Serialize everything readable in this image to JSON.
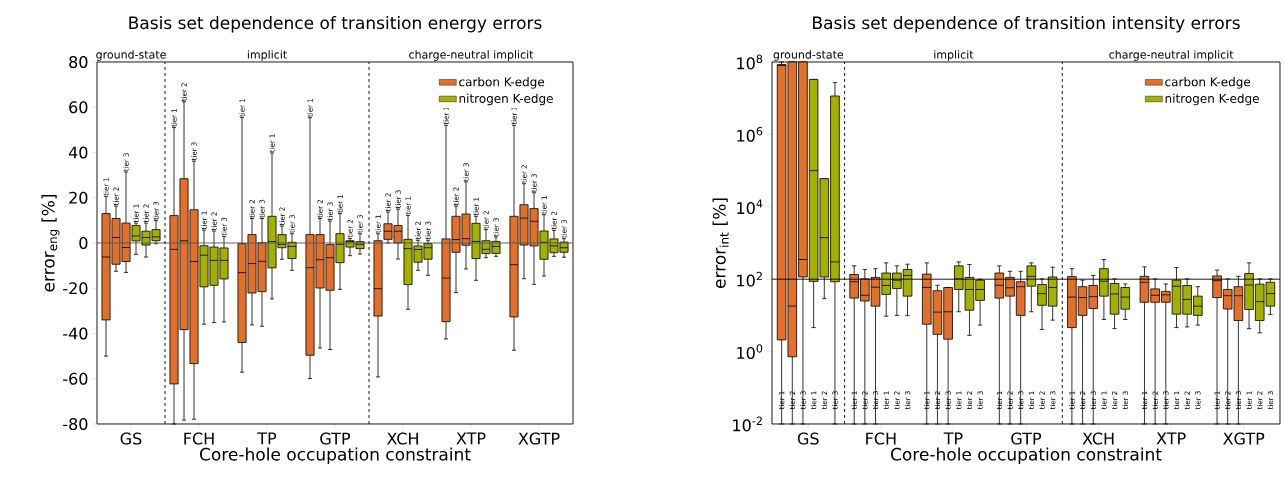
{
  "chart_data": [
    {
      "type": "box",
      "title": "Basis set dependence of transition energy errors",
      "xlabel": "Core-hole occupation constraint",
      "ylabel": "error$_{eng}$ [%]",
      "categories": [
        "GS",
        "FCH",
        "TP",
        "GTP",
        "XCH",
        "XTP",
        "XGTP"
      ],
      "ylim": [
        -80,
        80
      ],
      "yticks": [
        -80,
        -60,
        -40,
        -20,
        0,
        20,
        40,
        60,
        80
      ],
      "legend": "top right",
      "series": [
        {
          "name": "carbon K-edge",
          "color": "#e3702a",
          "boxes": [
            {
              "low": -50,
              "q1": -34,
              "median": -6.2,
              "q3": 13,
              "high": 20.6
            },
            {
              "low": -80,
              "q1": -62.3,
              "median": -2.8,
              "q3": 12.1,
              "high": 51
            },
            {
              "low": -57.1,
              "q1": -44,
              "median": -13.1,
              "q3": -0.3,
              "high": 55.4
            },
            {
              "low": -59.9,
              "q1": -49.6,
              "median": -10.9,
              "q3": 3.7,
              "high": 55.4
            },
            {
              "low": -59.2,
              "q1": -32.3,
              "median": -20.2,
              "q3": 1,
              "high": 4.1
            },
            {
              "low": -42.4,
              "q1": -34.8,
              "median": -15.5,
              "q3": 1.8,
              "high": 52
            },
            {
              "low": -47.4,
              "q1": -32.7,
              "median": -9.6,
              "q3": 11.8,
              "high": 52
            }
          ]
        },
        {
          "color": "#e3702a",
          "boxes": [
            {
              "low": -12.5,
              "q1": -9.4,
              "median": 2.4,
              "q3": 10.8,
              "high": 16.3
            },
            {
              "low": -78.3,
              "q1": -38.3,
              "median": 1,
              "q3": 28.4,
              "high": 62.4
            },
            {
              "low": -36.2,
              "q1": -22.1,
              "median": -9.1,
              "q3": 3.7,
              "high": 10.8
            },
            {
              "low": -46.4,
              "q1": -19.9,
              "median": -7.4,
              "q3": 3.7,
              "high": 10.8
            },
            {
              "low": 0,
              "q1": 1.6,
              "median": 5.2,
              "q3": 8.5,
              "high": 13.7
            },
            {
              "low": -21.9,
              "q1": -4.1,
              "median": 1.5,
              "q3": 11.8,
              "high": 16.3
            },
            {
              "low": -15.8,
              "q1": -0.9,
              "median": 11,
              "q3": 16.9,
              "high": 26.2
            }
          ]
        },
        {
          "color": "#e3702a",
          "boxes": [
            {
              "low": -13,
              "q1": -8.2,
              "median": -2,
              "q3": 8.8,
              "high": 31.4
            },
            {
              "low": -77.9,
              "q1": -53.3,
              "median": -8.2,
              "q3": 14.7,
              "high": 36.2
            },
            {
              "low": -36.8,
              "q1": -21.5,
              "median": -8.1,
              "q3": 0.1,
              "high": 10.8
            },
            {
              "low": -47.1,
              "q1": -20.9,
              "median": -6.5,
              "q3": -0.7,
              "high": 9.7
            },
            {
              "low": -7.1,
              "q1": 0,
              "median": 5.2,
              "q3": 7.7,
              "high": 15
            },
            {
              "low": -11.5,
              "q1": -1,
              "median": 1.9,
              "q3": 12.8,
              "high": 27
            },
            {
              "low": -18.3,
              "q1": -1.3,
              "median": 9.6,
              "q3": 15.2,
              "high": 22.2
            }
          ]
        },
        {
          "name": "nitrogen K-edge",
          "color": "#a4b000",
          "boxes": [
            {
              "low": -5,
              "q1": 0.9,
              "median": 3.1,
              "q3": 7.7,
              "high": 8.8
            },
            {
              "low": -35.9,
              "q1": -19.4,
              "median": -5.4,
              "q3": -1.2,
              "high": 5.7
            },
            {
              "low": -24.7,
              "q1": -11,
              "median": 0.6,
              "q3": 11.8,
              "high": 39.8
            },
            {
              "low": -20.5,
              "q1": -8.7,
              "median": -0.6,
              "q3": 4.1,
              "high": 13
            },
            {
              "low": -29.3,
              "q1": -18.4,
              "median": -2.5,
              "q3": 1.6,
              "high": 12.2
            },
            {
              "low": -16.5,
              "q1": -6.9,
              "median": 0.7,
              "q3": 8.7,
              "high": 11.8
            },
            {
              "low": -14.6,
              "q1": -7.2,
              "median": 0.3,
              "q3": 5.3,
              "high": 12.5
            }
          ]
        },
        {
          "color": "#a4b000",
          "boxes": [
            {
              "low": -6.2,
              "q1": -0.9,
              "median": 2.4,
              "q3": 5.2,
              "high": 8.8
            },
            {
              "low": -35.2,
              "q1": -18.7,
              "median": -7.7,
              "q3": -1.8,
              "high": 5.3
            },
            {
              "low": -7.2,
              "q1": -2.1,
              "median": -0.6,
              "q3": 3.7,
              "high": 7.5
            },
            {
              "low": -5.6,
              "q1": -1.8,
              "median": 0.6,
              "q3": 1,
              "high": 2
            },
            {
              "low": -12.1,
              "q1": -8.5,
              "median": -2.9,
              "q3": -1.3,
              "high": 1.2
            },
            {
              "low": -6.5,
              "q1": -4.7,
              "median": -2.8,
              "q3": 1,
              "high": 5.9
            },
            {
              "low": -5.9,
              "q1": -4.3,
              "median": -1.3,
              "q3": 1.8,
              "high": 5.6
            }
          ]
        },
        {
          "color": "#a4b000",
          "boxes": [
            {
              "low": -0.3,
              "q1": 1,
              "median": 2.7,
              "q3": 5.9,
              "high": 9.9
            },
            {
              "low": -34.9,
              "q1": -15.9,
              "median": -7.7,
              "q3": -2.2,
              "high": 2.9
            },
            {
              "low": -12.1,
              "q1": -6.9,
              "median": -1.5,
              "q3": 0.3,
              "high": 4.1
            },
            {
              "low": -4.9,
              "q1": -2.5,
              "median": -0.6,
              "q3": 0.6,
              "high": 4.1
            },
            {
              "low": -14.3,
              "q1": -7.2,
              "median": -2.1,
              "q3": -0.3,
              "high": 1.2
            },
            {
              "low": -5.9,
              "q1": -4.6,
              "median": -1.5,
              "q3": 0.7,
              "high": 2.7
            },
            {
              "low": -6.3,
              "q1": -4.1,
              "median": -2.1,
              "q3": 0.4,
              "high": 1.9
            }
          ]
        }
      ],
      "ref_lines": [
        {
          "axis": "y",
          "value": 0,
          "color": "#555555",
          "line_style": "solid"
        }
      ],
      "annotations": [
        "ground-state",
        "implicit",
        "charge-neutral implicit",
        "tier 1",
        "tier 2",
        "tier 3",
        "tier 1",
        "tier 2",
        "tier 3",
        "tier 1",
        "tier 2",
        "tier 3",
        "tier 1",
        "tier 2",
        "tier 3",
        "tier 1",
        "tier 2",
        "tier 3",
        "tier 1",
        "tier 2",
        "tier 3",
        "tier 1",
        "tier 2",
        "tier 3",
        "tier 1",
        "tier 2",
        "tier 3",
        "tier 1",
        "tier 2",
        "tier 3",
        "tier 1",
        "tier 2",
        "tier 3",
        "tier 1",
        "tier 2",
        "tier 3",
        "tier 1",
        "tier 2",
        "tier 3",
        "tier 1",
        "tier 2",
        "tier 3",
        "tier 1",
        "tier 2",
        "tier 3"
      ]
    },
    {
      "type": "box",
      "title": "Basis set dependence of transition intensity errors",
      "xlabel": "Core-hole occupation constraint",
      "ylabel": "error$_{int}$ [%]",
      "categories": [
        "GS",
        "FCH",
        "TP",
        "GTP",
        "XCH",
        "XTP",
        "XGTP"
      ],
      "log": "y",
      "ylim": [
        0.01,
        100000000
      ],
      "yticks": [
        {
          "value": 0.01,
          "label": "10$^{-2}$"
        },
        {
          "value": 1,
          "label": "10$^{0}$"
        },
        {
          "value": 100,
          "label": "10$^{2}$"
        },
        {
          "value": 10000,
          "label": "10$^{4}$"
        },
        {
          "value": 1000000,
          "label": "10$^{6}$"
        },
        {
          "value": 100000000,
          "label": "10$^{8}$"
        }
      ],
      "legend": "top right",
      "series": [
        {
          "name": "carbon K-edge",
          "color": "#e3702a",
          "boxes": [
            {
              "low": 0.01,
              "q1": 2.1,
              "median": 80000000,
              "q3": 85000000,
              "high": 100000000
            },
            {
              "low": 0.01,
              "q1": 30,
              "median": 85,
              "q3": 135,
              "high": 234
            },
            {
              "low": 0.01,
              "q1": 5.7,
              "median": 59,
              "q3": 138,
              "high": 282
            },
            {
              "low": 0.01,
              "q1": 30,
              "median": 68,
              "q3": 148,
              "high": 234
            },
            {
              "low": 0.01,
              "q1": 4.6,
              "median": 32,
              "q3": 118,
              "high": 195
            },
            {
              "low": 0.01,
              "q1": 23,
              "median": 82,
              "q3": 120,
              "high": 219
            },
            {
              "low": 0.01,
              "q1": 31,
              "median": 91,
              "q3": 123,
              "high": 178
            }
          ]
        },
        {
          "color": "#e3702a",
          "boxes": [
            {
              "low": 0.01,
              "q1": 0.72,
              "median": 18,
              "q3": 100000000,
              "high": 100000000
            },
            {
              "low": 0.01,
              "q1": 25,
              "median": 36,
              "q3": 102,
              "high": 186
            },
            {
              "low": 0.01,
              "q1": 3,
              "median": 12.3,
              "q3": 48,
              "high": 68
            },
            {
              "low": 0.01,
              "q1": 34,
              "median": 58,
              "q3": 112,
              "high": 165
            },
            {
              "low": 0.01,
              "q1": 10,
              "median": 31,
              "q3": 62,
              "high": 94
            },
            {
              "low": 0.01,
              "q1": 23,
              "median": 36,
              "q3": 54,
              "high": 102
            },
            {
              "low": 0.01,
              "q1": 15,
              "median": 35,
              "q3": 52,
              "high": 102
            }
          ]
        },
        {
          "color": "#e3702a",
          "boxes": [
            {
              "low": 0.01,
              "q1": 115,
              "median": 350,
              "q3": 100000000,
              "high": 100000000
            },
            {
              "low": 0.01,
              "q1": 18,
              "median": 60,
              "q3": 112,
              "high": 195
            },
            {
              "low": 0.01,
              "q1": 2.2,
              "median": 12.6,
              "q3": 59,
              "high": 59
            },
            {
              "low": 0.01,
              "q1": 10,
              "median": 62,
              "q3": 85,
              "high": 165
            },
            {
              "low": 0.01,
              "q1": 15.5,
              "median": 33,
              "q3": 67,
              "high": 126
            },
            {
              "low": 0.01,
              "q1": 23,
              "median": 37,
              "q3": 46,
              "high": 74
            },
            {
              "low": 0.01,
              "q1": 7.2,
              "median": 35,
              "q3": 62,
              "high": 120
            }
          ]
        },
        {
          "name": "nitrogen K-edge",
          "color": "#a4b000",
          "boxes": [
            {
              "low": 4.6,
              "q1": 87,
              "median": 100000,
              "q3": 33000000,
              "high": 33000000
            },
            {
              "low": 9.5,
              "q1": 38,
              "median": 67,
              "q3": 148,
              "high": 282
            },
            {
              "low": 12.6,
              "q1": 52,
              "median": 102,
              "q3": 234,
              "high": 300
            },
            {
              "low": 12.6,
              "q1": 64,
              "median": 120,
              "q3": 234,
              "high": 282
            },
            {
              "low": 7.7,
              "q1": 34,
              "median": 88,
              "q3": 195,
              "high": 350
            },
            {
              "low": 4.6,
              "q1": 10.8,
              "median": 64,
              "q3": 94,
              "high": 210
            },
            {
              "low": 4.3,
              "q1": 14.5,
              "median": 69,
              "q3": 144,
              "high": 282
            }
          ]
        },
        {
          "color": "#a4b000",
          "boxes": [
            {
              "low": 29,
              "q1": 115,
              "median": 1400,
              "q3": 60000,
              "high": 60000
            },
            {
              "low": 10,
              "q1": 55,
              "median": 94,
              "q3": 148,
              "high": 234
            },
            {
              "low": 2.8,
              "q1": 13.9,
              "median": 52,
              "q3": 112,
              "high": 255
            },
            {
              "low": 4.1,
              "q1": 19,
              "median": 40,
              "q3": 71,
              "high": 102
            },
            {
              "low": 4.3,
              "q1": 10.8,
              "median": 39,
              "q3": 76,
              "high": 102
            },
            {
              "low": 4.8,
              "q1": 10.8,
              "median": 27.5,
              "q3": 67,
              "high": 102
            },
            {
              "low": 3.3,
              "q1": 7.2,
              "median": 24,
              "q3": 73,
              "high": 102
            }
          ]
        },
        {
          "color": "#a4b000",
          "boxes": [
            {
              "low": 0.01,
              "q1": 85,
              "median": 300,
              "q3": 11500000,
              "high": 27000000
            },
            {
              "low": 9.8,
              "q1": 34,
              "median": 126,
              "q3": 186,
              "high": 260
            },
            {
              "low": 5.4,
              "q1": 26,
              "median": 52,
              "q3": 94,
              "high": 100
            },
            {
              "low": 7.4,
              "q1": 18,
              "median": 59,
              "q3": 115,
              "high": 214
            },
            {
              "low": 7.7,
              "q1": 14.8,
              "median": 32,
              "q3": 59,
              "high": 74
            },
            {
              "low": 5.4,
              "q1": 10,
              "median": 18,
              "q3": 34,
              "high": 62
            },
            {
              "low": 10.5,
              "q1": 18,
              "median": 40,
              "q3": 82,
              "high": 102
            }
          ]
        }
      ],
      "ref_lines": [
        {
          "axis": "y",
          "value": 100,
          "color": "#000000",
          "line_style": "solid"
        }
      ],
      "annotations": [
        "ground-state",
        "implicit",
        "charge-neutral implicit",
        "tier 1",
        "tier 2",
        "tier 3",
        "tier 1",
        "tier 2",
        "tier 3",
        "tier 1",
        "tier 2",
        "tier 3",
        "tier 1",
        "tier 2",
        "tier 3",
        "tier 1",
        "tier 2",
        "tier 3",
        "tier 1",
        "tier 2",
        "tier 3",
        "tier 1",
        "tier 2",
        "tier 3",
        "tier 1",
        "tier 2",
        "tier 3",
        "tier 1",
        "tier 2",
        "tier 3",
        "tier 1",
        "tier 2",
        "tier 3",
        "tier 1",
        "tier 2",
        "tier 3",
        "tier 1",
        "tier 2",
        "tier 3",
        "tier 1",
        "tier 2",
        "tier 3",
        "tier 1",
        "tier 2",
        "tier 3"
      ]
    }
  ]
}
